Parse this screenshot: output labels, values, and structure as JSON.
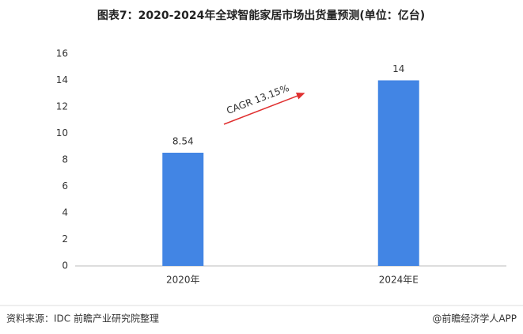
{
  "chart_data": {
    "type": "bar",
    "title": "图表7：2020-2024年全球智能家居市场出货量预测(单位：亿台)",
    "categories": [
      "2020年",
      "2024年E"
    ],
    "values": [
      8.54,
      14
    ],
    "color": "#4285e4",
    "ylim": [
      0,
      16
    ],
    "yticks": [
      0,
      2,
      4,
      6,
      8,
      10,
      12,
      14,
      16
    ],
    "annotation": "CAGR 13.15%",
    "source": "资料来源：IDC 前瞻产业研究院整理",
    "credit": "@前瞻经济学人APP"
  }
}
